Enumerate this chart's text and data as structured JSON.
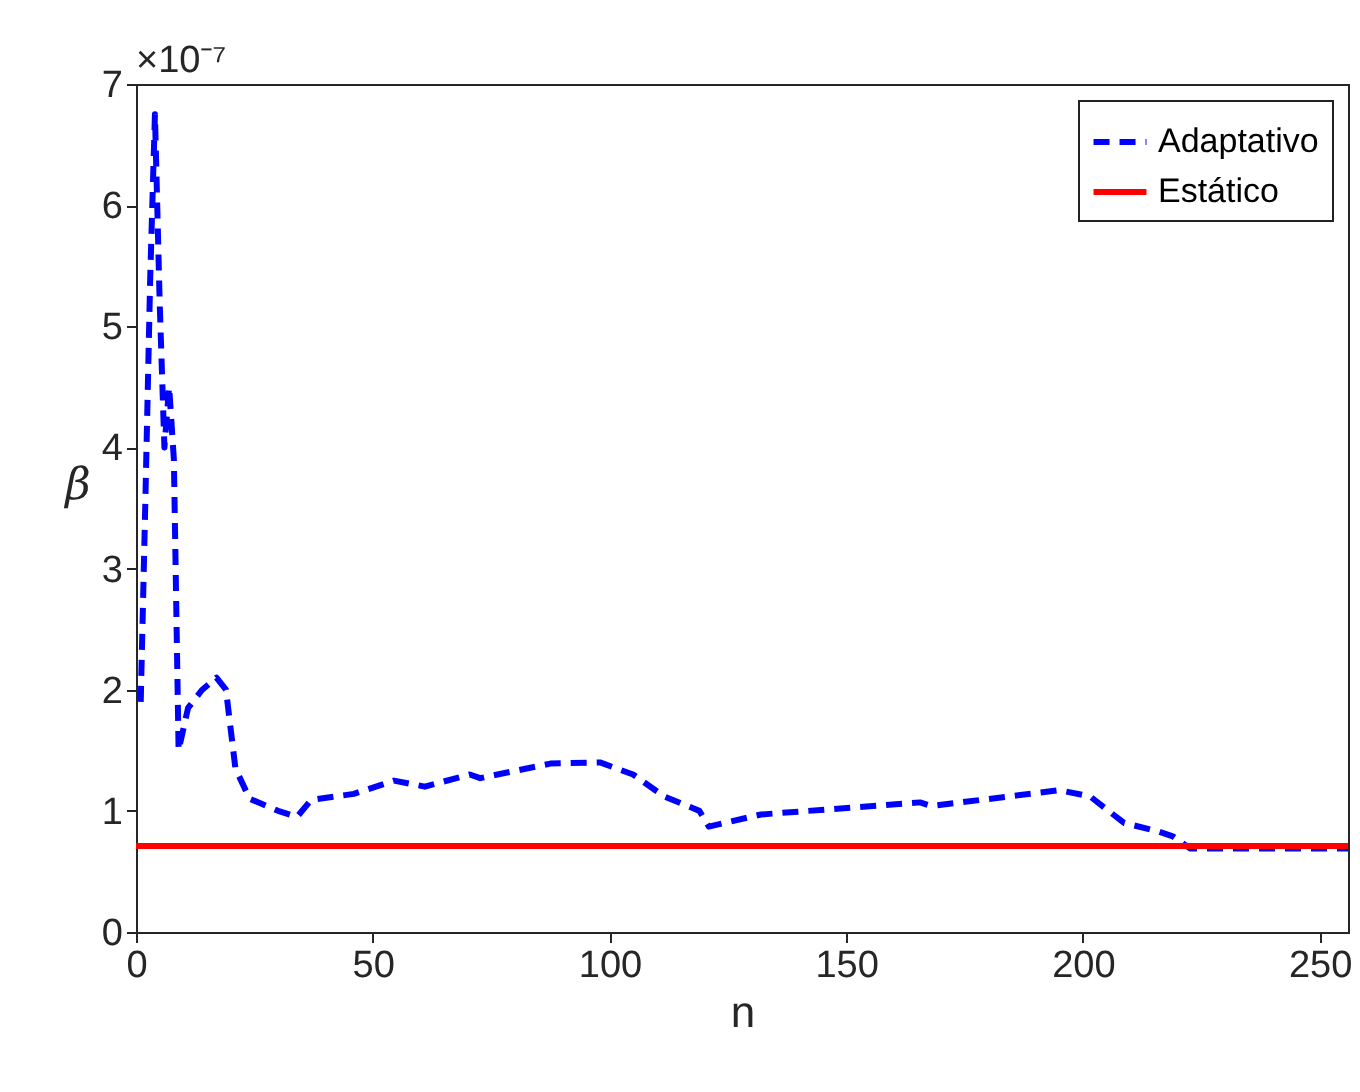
{
  "chart_data": {
    "type": "line",
    "xlabel": "n",
    "ylabel": "β",
    "annotations": [
      "×10⁻⁷"
    ],
    "xlim": [
      0,
      256
    ],
    "xticks": [
      0,
      50,
      100,
      150,
      200,
      250
    ],
    "ylim": [
      0,
      7
    ],
    "yticks": [
      0,
      1,
      2,
      3,
      4,
      5,
      6,
      7
    ],
    "grid": false,
    "legend": "top right",
    "marker": "none",
    "series": [
      {
        "name": "Adaptativo",
        "color": "#0000ff",
        "line_style": "dashed",
        "x": [
          1,
          2,
          3,
          4,
          5,
          6,
          7,
          8,
          9,
          11,
          14,
          17,
          19,
          21,
          24,
          30,
          34,
          37,
          46,
          54.5,
          61,
          70.5,
          72.7,
          87.5,
          98,
          105,
          111.5,
          119,
          121,
          132,
          165.6,
          168,
          195,
          201.5,
          208.7,
          216,
          219,
          222.6,
          233,
          256
        ],
        "values": [
          1.9,
          3.6,
          5.4,
          6.75,
          5.2,
          4.0,
          4.5,
          3.9,
          1.5,
          1.85,
          2.0,
          2.1,
          2.0,
          1.35,
          1.1,
          1.0,
          0.95,
          1.09,
          1.14,
          1.25,
          1.2,
          1.3,
          1.27,
          1.39,
          1.4,
          1.3,
          1.12,
          1.0,
          0.87,
          0.97,
          1.07,
          1.04,
          1.17,
          1.12,
          0.9,
          0.83,
          0.79,
          0.69,
          0.69,
          0.69
        ]
      },
      {
        "name": "Estático",
        "color": "#ff0000",
        "line_style": "solid",
        "x": [
          0,
          256
        ],
        "values": [
          0.71,
          0.71
        ]
      }
    ]
  }
}
